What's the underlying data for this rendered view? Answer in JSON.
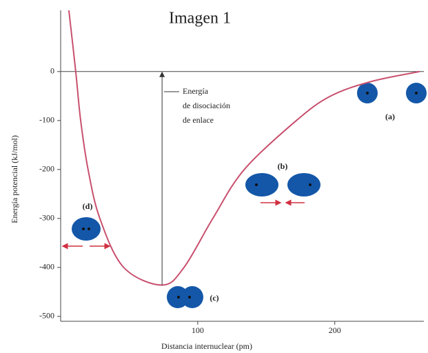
{
  "chart_data": {
    "type": "line",
    "title": "Imagen 1",
    "xlabel": "Distancia internuclear (pm)",
    "ylabel": "Energía potencial (kJ/mol)",
    "x": [
      6,
      11,
      14.6,
      20,
      28.6,
      46,
      74,
      90,
      111,
      134,
      172,
      197,
      227,
      262
    ],
    "values": [
      125,
      0,
      -100,
      -200,
      -300,
      -400,
      -436,
      -400,
      -300,
      -200,
      -100,
      -50,
      -20,
      0
    ],
    "color": "#c8506e",
    "xlim": [
      0,
      263
    ],
    "ylim": [
      -510,
      125
    ],
    "xticks": [
      100,
      200
    ],
    "yticks": [
      0,
      -100,
      -200,
      -300,
      -400,
      -500
    ],
    "annotations": [
      "Energía",
      "de disociación",
      "de enlace",
      "(a)",
      "(b)",
      "(c)",
      "(d)"
    ]
  }
}
